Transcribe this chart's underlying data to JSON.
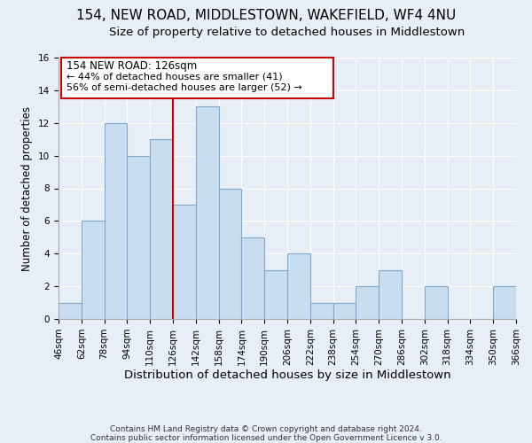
{
  "title": "154, NEW ROAD, MIDDLESTOWN, WAKEFIELD, WF4 4NU",
  "subtitle": "Size of property relative to detached houses in Middlestown",
  "xlabel": "Distribution of detached houses by size in Middlestown",
  "ylabel": "Number of detached properties",
  "bar_color": "#c8ddef",
  "bar_edge_color": "#7fa8cc",
  "marker_color": "#cc0000",
  "marker_value": 126,
  "bins": [
    46,
    62,
    78,
    94,
    110,
    126,
    142,
    158,
    174,
    190,
    206,
    222,
    238,
    254,
    270,
    286,
    302,
    318,
    334,
    350,
    366
  ],
  "counts": [
    1,
    6,
    12,
    10,
    11,
    7,
    13,
    8,
    5,
    3,
    4,
    1,
    1,
    2,
    3,
    0,
    2,
    0,
    0,
    2
  ],
  "annotation_title": "154 NEW ROAD: 126sqm",
  "annotation_line1": "← 44% of detached houses are smaller (41)",
  "annotation_line2": "56% of semi-detached houses are larger (52) →",
  "footer1": "Contains HM Land Registry data © Crown copyright and database right 2024.",
  "footer2": "Contains public sector information licensed under the Open Government Licence v 3.0.",
  "ylim": [
    0,
    16
  ],
  "yticks": [
    0,
    2,
    4,
    6,
    8,
    10,
    12,
    14,
    16
  ],
  "background_color": "#e8eef5",
  "title_fontsize": 11,
  "subtitle_fontsize": 9.5,
  "xlabel_fontsize": 9.5,
  "ylabel_fontsize": 8.5,
  "tick_fontsize": 7.5,
  "annotation_box_edgecolor": "#cc0000",
  "annotation_box_facecolor": "#ffffff",
  "footer_fontsize": 6.5,
  "footer_color": "#333333"
}
